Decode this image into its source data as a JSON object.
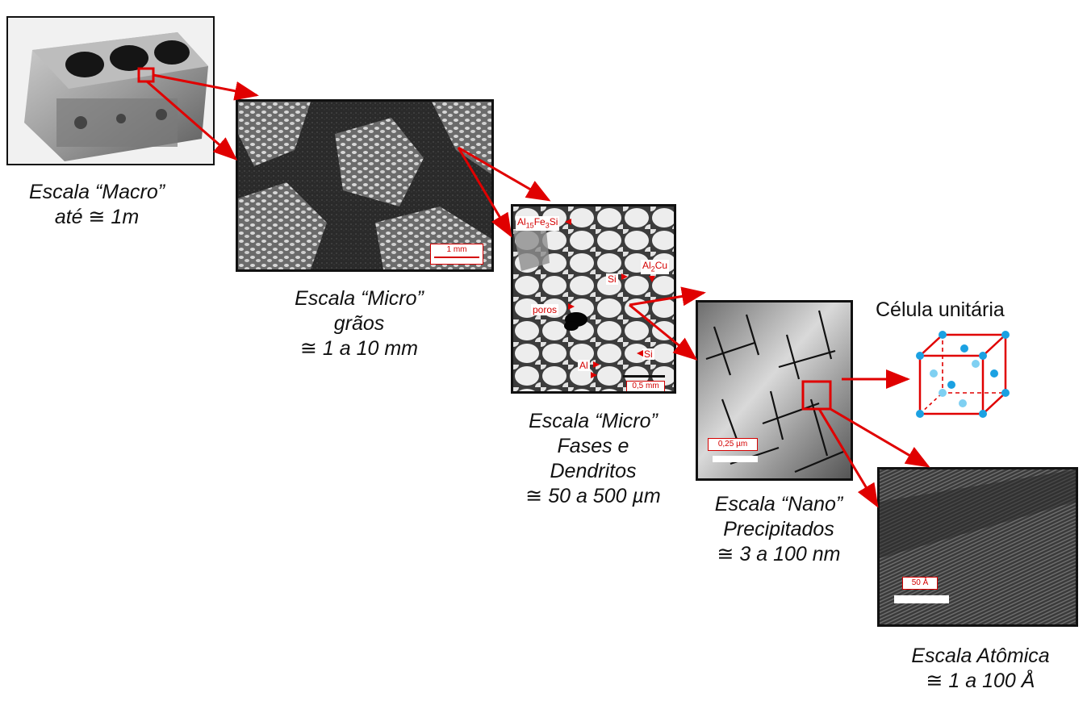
{
  "macro": {
    "caption": [
      "Escala “Macro”",
      "até ≅ 1m"
    ]
  },
  "micro_grains": {
    "caption": [
      "Escala “Micro”",
      "grãos",
      "≅ 1 a 10 mm"
    ],
    "scale_bar": "1 mm"
  },
  "micro_phases": {
    "caption": [
      "Escala “Micro”",
      "Fases e",
      "Dendritos",
      "≅ 50 a 500 µm"
    ],
    "labels": {
      "al15fe3si_main": "Al",
      "al15fe3si_sub1": "15",
      "al15fe3si_mid": "Fe",
      "al15fe3si_sub2": "3",
      "al15fe3si_end": "Si",
      "al2cu_main": "Al",
      "al2cu_sub": "2",
      "al2cu_end": "Cu",
      "si_1": "Si",
      "si_2": "Si",
      "poros": "poros",
      "al": "Al"
    },
    "scale_bar": "0,5 mm"
  },
  "nano": {
    "caption": [
      "Escala “Nano”",
      "Precipitados",
      "≅ 3 a 100 nm"
    ],
    "scale_bar": "0,25 µm"
  },
  "unit_cell": {
    "title": "Célula unitária",
    "atom_color": "#1ba1e2",
    "edge_color": "#e00000"
  },
  "atomic": {
    "caption": [
      "Escala Atômica",
      "≅ 1 a 100 Å"
    ],
    "scale_bar": "50 Å"
  },
  "colors": {
    "arrow": "#e00000",
    "label_red": "#d40000"
  }
}
